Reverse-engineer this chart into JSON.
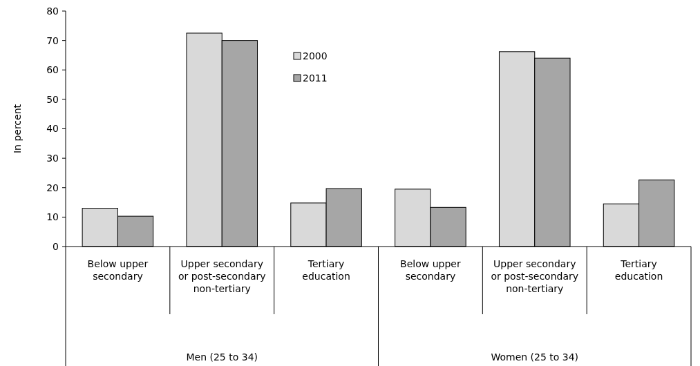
{
  "chart_data": {
    "type": "bar",
    "ylabel": "In percent",
    "categories": [
      "Below upper secondary",
      "Upper secondary or post-secondary non-tertiary",
      "Tertiary education",
      "Below upper secondary",
      "Upper secondary or post-secondary non-tertiary",
      "Tertiary education"
    ],
    "series": [
      {
        "name": "2000",
        "color": "#d9d9d9",
        "values": [
          13,
          72.5,
          14.8,
          19.5,
          66.2,
          14.5
        ]
      },
      {
        "name": "2011",
        "color": "#a6a6a6",
        "values": [
          10.3,
          70,
          19.7,
          13.3,
          64,
          22.6
        ]
      }
    ],
    "annotations": [
      "Men (25 to 34)",
      "Women (25 to 34)"
    ],
    "ylim": [
      0,
      80
    ],
    "yticks": [
      0,
      10,
      20,
      30,
      40,
      50,
      60,
      70,
      80
    ],
    "grid": false,
    "legend": "top"
  }
}
